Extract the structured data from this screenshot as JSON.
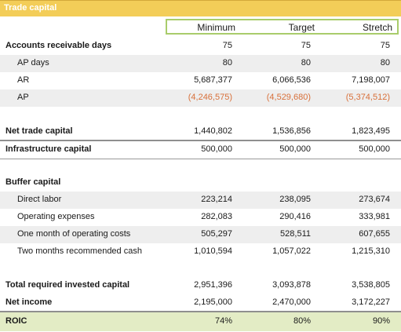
{
  "title": "Trade capital",
  "columns": [
    "Minimum",
    "Target",
    "Stretch"
  ],
  "rows": [
    {
      "label": "Accounts receivable days",
      "values": [
        "75",
        "75",
        "75"
      ]
    },
    {
      "label": "AP days",
      "values": [
        "80",
        "80",
        "80"
      ]
    },
    {
      "label": "AR",
      "values": [
        "5,687,377",
        "6,066,536",
        "7,198,007"
      ]
    },
    {
      "label": "AP",
      "values": [
        "(4,246,575)",
        "(4,529,680)",
        "(5,374,512)"
      ]
    },
    {
      "label": "Net trade capital",
      "values": [
        "1,440,802",
        "1,536,856",
        "1,823,495"
      ]
    },
    {
      "label": "Infrastructure capital",
      "values": [
        "500,000",
        "500,000",
        "500,000"
      ]
    },
    {
      "label": "Buffer capital",
      "values": [
        "",
        "",
        ""
      ]
    },
    {
      "label": "Direct labor",
      "values": [
        "223,214",
        "238,095",
        "273,674"
      ]
    },
    {
      "label": "Operating expenses",
      "values": [
        "282,083",
        "290,416",
        "333,981"
      ]
    },
    {
      "label": "One month of operating costs",
      "values": [
        "505,297",
        "528,511",
        "607,655"
      ]
    },
    {
      "label": "Two months recommended cash",
      "values": [
        "1,010,594",
        "1,057,022",
        "1,215,310"
      ]
    },
    {
      "label": "Total required invested capital",
      "values": [
        "2,951,396",
        "3,093,878",
        "3,538,805"
      ]
    },
    {
      "label": "Net income",
      "values": [
        "2,195,000",
        "2,470,000",
        "3,172,227"
      ]
    },
    {
      "label": "ROIC",
      "values": [
        "74%",
        "80%",
        "90%"
      ]
    }
  ],
  "colors": {
    "title_bg": "#f3cd58",
    "header_border": "#a9cc6b",
    "negative": "#d8703a",
    "roic_bg": "#e3ecc5",
    "shade": "#eeeeee"
  }
}
